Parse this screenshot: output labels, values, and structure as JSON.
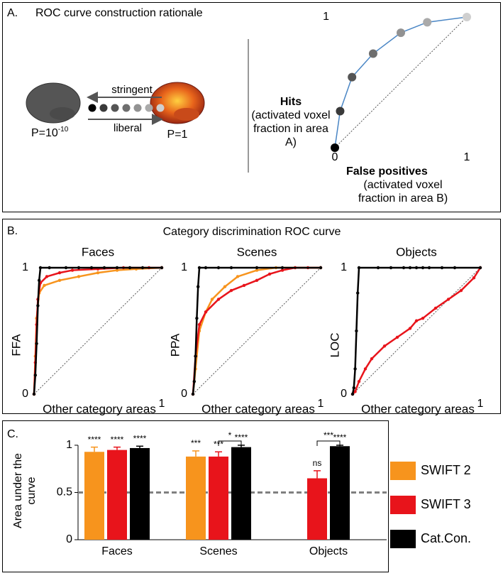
{
  "panel_a": {
    "label": "A.",
    "title": "ROC curve construction rationale",
    "arrow_top": "stringent",
    "arrow_bottom": "liberal",
    "threshold_left": "P=10",
    "threshold_left_exponent": "-10",
    "threshold_right": "P=1"
  },
  "panel_b": {
    "label": "B.",
    "title": "Category discrimination ROC curve"
  },
  "panel_c": {
    "label": "C."
  },
  "chart_data": [
    {
      "type": "scatter",
      "xlabel": "False positives",
      "xlabel_note": "(activated voxel fraction in area B)",
      "ylabel": "Hits",
      "ylabel_note": "(activated voxel fraction in area A)",
      "xlim": [
        0,
        1
      ],
      "ylim": [
        0,
        1
      ],
      "xticks": [
        0,
        1
      ],
      "yticks": [
        1
      ],
      "x": [
        0,
        0.04,
        0.13,
        0.29,
        0.5,
        0.7,
        1
      ],
      "values": [
        0,
        0.28,
        0.54,
        0.72,
        0.88,
        0.96,
        1
      ],
      "point_colors": [
        "#000000",
        "#3a3a3a",
        "#555555",
        "#6e6e6e",
        "#929292",
        "#aaaaaa",
        "#cfcfcf"
      ],
      "line_color": "#4a86c5",
      "diagonal": true
    },
    {
      "type": "line",
      "title": "Faces",
      "ylabel": "FFA",
      "xlabel": "Other category areas",
      "xlim": [
        0,
        1
      ],
      "ylim": [
        0,
        1
      ],
      "xticks": [
        1
      ],
      "yticks": [
        0,
        1
      ],
      "diagonal": true,
      "series": [
        {
          "color": "#f7941d",
          "x": [
            0,
            0.01,
            0.02,
            0.04,
            0.08,
            0.2,
            0.35,
            0.5,
            0.65,
            0.8,
            1
          ],
          "values": [
            0,
            0.3,
            0.6,
            0.8,
            0.86,
            0.9,
            0.93,
            0.96,
            0.98,
            0.99,
            1
          ]
        },
        {
          "color": "#e8141b",
          "x": [
            0,
            0.01,
            0.02,
            0.03,
            0.05,
            0.1,
            0.2,
            0.3,
            0.5,
            0.7,
            0.9,
            1
          ],
          "values": [
            0,
            0.25,
            0.55,
            0.75,
            0.88,
            0.93,
            0.96,
            0.98,
            0.99,
            1,
            1,
            1
          ]
        },
        {
          "color": "#000000",
          "x": [
            0,
            0.01,
            0.02,
            0.03,
            0.04,
            0.05,
            0.12,
            0.25,
            0.35,
            0.45,
            0.55,
            0.65,
            0.75,
            0.85,
            1
          ],
          "values": [
            0,
            0.15,
            0.4,
            0.7,
            0.9,
            1,
            1,
            1,
            1,
            1,
            1,
            1,
            1,
            1,
            1
          ]
        }
      ]
    },
    {
      "type": "line",
      "title": "Scenes",
      "ylabel": "PPA",
      "xlabel": "Other category areas",
      "xlim": [
        0,
        1
      ],
      "ylim": [
        0,
        1
      ],
      "xticks": [
        1
      ],
      "yticks": [
        0,
        1
      ],
      "diagonal": true,
      "series": [
        {
          "color": "#f7941d",
          "x": [
            0,
            0.02,
            0.05,
            0.1,
            0.15,
            0.25,
            0.35,
            0.5,
            0.65,
            0.8,
            1
          ],
          "values": [
            0,
            0.2,
            0.5,
            0.65,
            0.75,
            0.85,
            0.93,
            0.98,
            1,
            1,
            1
          ]
        },
        {
          "color": "#e8141b",
          "x": [
            0,
            0.02,
            0.05,
            0.1,
            0.2,
            0.3,
            0.4,
            0.5,
            0.6,
            0.7,
            0.8,
            0.9,
            1
          ],
          "values": [
            0,
            0.3,
            0.55,
            0.65,
            0.75,
            0.82,
            0.86,
            0.9,
            0.95,
            0.98,
            1,
            1,
            1
          ]
        },
        {
          "color": "#000000",
          "x": [
            0,
            0.01,
            0.02,
            0.03,
            0.04,
            0.05,
            0.1,
            0.2,
            0.3,
            0.5,
            0.7,
            1
          ],
          "values": [
            0,
            0.1,
            0.3,
            0.6,
            0.85,
            1,
            1,
            1,
            1,
            1,
            1,
            1
          ]
        }
      ]
    },
    {
      "type": "line",
      "title": "Objects",
      "ylabel": "LOC",
      "xlabel": "Other category areas",
      "xlim": [
        0,
        1
      ],
      "ylim": [
        0,
        1
      ],
      "xticks": [
        1
      ],
      "yticks": [
        0,
        1
      ],
      "diagonal": true,
      "series": [
        {
          "color": "#e8141b",
          "x": [
            0,
            0.02,
            0.05,
            0.1,
            0.15,
            0.25,
            0.35,
            0.45,
            0.5,
            0.55,
            0.65,
            0.75,
            0.85,
            0.95,
            1
          ],
          "values": [
            0,
            0.02,
            0.1,
            0.2,
            0.28,
            0.38,
            0.45,
            0.52,
            0.58,
            0.6,
            0.68,
            0.75,
            0.82,
            0.92,
            1
          ]
        },
        {
          "color": "#000000",
          "x": [
            0,
            0.01,
            0.02,
            0.03,
            0.04,
            0.05,
            0.2,
            0.3,
            0.4,
            0.45,
            0.5,
            0.55,
            0.6,
            0.7,
            0.8,
            1
          ],
          "values": [
            0,
            0.05,
            0.2,
            0.5,
            0.8,
            1,
            1,
            1,
            1,
            1,
            1,
            1,
            1,
            1,
            1,
            1
          ]
        }
      ]
    },
    {
      "type": "bar",
      "ylabel": "Area under the curve",
      "categories": [
        "Faces",
        "Scenes",
        "Objects"
      ],
      "ylim": [
        0,
        1.15
      ],
      "yticks": [
        0,
        0.5,
        1
      ],
      "hline": 0.5,
      "hline_color": "#808080",
      "series": [
        {
          "name": "SWIFT 2",
          "color": "#f7941d",
          "values": [
            0.93,
            0.88,
            null
          ],
          "errors": [
            0.05,
            0.06,
            null
          ],
          "significance": [
            "****",
            "***",
            null
          ]
        },
        {
          "name": "SWIFT 3",
          "color": "#e8141b",
          "values": [
            0.95,
            0.88,
            0.65
          ],
          "errors": [
            0.03,
            0.05,
            0.08
          ],
          "significance": [
            "****",
            "***",
            "ns"
          ]
        },
        {
          "name": "Cat.Con.",
          "color": "#000000",
          "values": [
            0.97,
            0.98,
            0.99
          ],
          "errors": [
            0.02,
            0.02,
            0.01
          ],
          "significance": [
            "****",
            "****",
            "****"
          ]
        }
      ],
      "comparisons": [
        {
          "category": "Scenes",
          "between": [
            "SWIFT 3",
            "Cat.Con."
          ],
          "label": "*"
        },
        {
          "category": "Objects",
          "between": [
            "SWIFT 3",
            "Cat.Con."
          ],
          "label": "***"
        }
      ]
    }
  ]
}
